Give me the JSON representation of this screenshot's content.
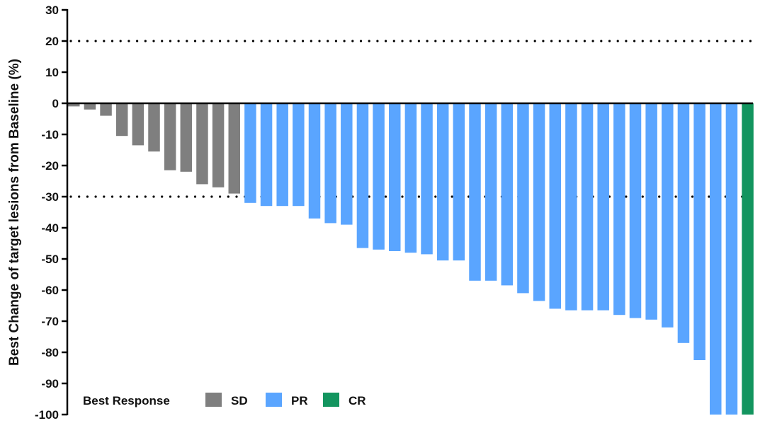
{
  "chart_data": {
    "type": "bar",
    "ylabel": "Best Change of target lesions from Baseline (%)",
    "ylim": [
      -100,
      30
    ],
    "yticks": [
      30,
      20,
      10,
      0,
      -10,
      -20,
      -30,
      -40,
      -50,
      -60,
      -70,
      -80,
      -90,
      -100
    ],
    "reference_lines": [
      20,
      -30
    ],
    "grid": false,
    "legend": {
      "title": "Best Response",
      "placement": "bottom-left",
      "entries": [
        {
          "key": "SD",
          "label": "SD",
          "color": "#7f7f7f"
        },
        {
          "key": "PR",
          "label": "PR",
          "color": "#5aa5ff"
        },
        {
          "key": "CR",
          "label": "CR",
          "color": "#13955f"
        }
      ]
    },
    "bars": [
      {
        "value": -1,
        "response": "SD"
      },
      {
        "value": -2,
        "response": "SD"
      },
      {
        "value": -4,
        "response": "SD"
      },
      {
        "value": -10.5,
        "response": "SD"
      },
      {
        "value": -13.5,
        "response": "SD"
      },
      {
        "value": -15.5,
        "response": "SD"
      },
      {
        "value": -21.5,
        "response": "SD"
      },
      {
        "value": -22,
        "response": "SD"
      },
      {
        "value": -26,
        "response": "SD"
      },
      {
        "value": -27,
        "response": "SD"
      },
      {
        "value": -29,
        "response": "SD"
      },
      {
        "value": -32,
        "response": "PR"
      },
      {
        "value": -33,
        "response": "PR"
      },
      {
        "value": -33,
        "response": "PR"
      },
      {
        "value": -33,
        "response": "PR"
      },
      {
        "value": -37,
        "response": "PR"
      },
      {
        "value": -38.5,
        "response": "PR"
      },
      {
        "value": -39,
        "response": "PR"
      },
      {
        "value": -46.5,
        "response": "PR"
      },
      {
        "value": -47,
        "response": "PR"
      },
      {
        "value": -47.5,
        "response": "PR"
      },
      {
        "value": -48,
        "response": "PR"
      },
      {
        "value": -48.5,
        "response": "PR"
      },
      {
        "value": -50.5,
        "response": "PR"
      },
      {
        "value": -50.5,
        "response": "PR"
      },
      {
        "value": -57,
        "response": "PR"
      },
      {
        "value": -57,
        "response": "PR"
      },
      {
        "value": -58.5,
        "response": "PR"
      },
      {
        "value": -61,
        "response": "PR"
      },
      {
        "value": -63.5,
        "response": "PR"
      },
      {
        "value": -66,
        "response": "PR"
      },
      {
        "value": -66.5,
        "response": "PR"
      },
      {
        "value": -66.5,
        "response": "PR"
      },
      {
        "value": -66.5,
        "response": "PR"
      },
      {
        "value": -68,
        "response": "PR"
      },
      {
        "value": -69,
        "response": "PR"
      },
      {
        "value": -69.5,
        "response": "PR"
      },
      {
        "value": -72,
        "response": "PR"
      },
      {
        "value": -77,
        "response": "PR"
      },
      {
        "value": -82.5,
        "response": "PR"
      },
      {
        "value": -100,
        "response": "PR"
      },
      {
        "value": -100,
        "response": "PR"
      },
      {
        "value": -100,
        "response": "CR"
      }
    ]
  }
}
